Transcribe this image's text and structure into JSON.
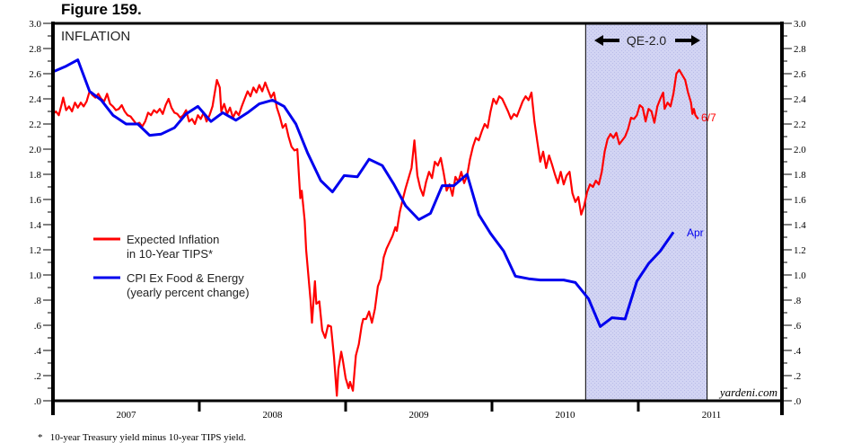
{
  "figure_title": "Figure 159.",
  "footnote": "*   10-year Treasury yield minus 10-year TIPS yield.",
  "chart_data": {
    "type": "line",
    "title": "INFLATION",
    "xlabel": "",
    "ylabel": "",
    "ylim": [
      0,
      3.0
    ],
    "xlim": [
      2007.0,
      2011.99
    ],
    "y_ticks": [
      "3.0",
      "2.8",
      "2.6",
      "2.4",
      "2.2",
      "2.0",
      "1.8",
      "1.6",
      "1.4",
      "1.2",
      "1.0",
      ".8",
      ".6",
      ".4",
      ".2",
      ".0"
    ],
    "x_tick_labels": [
      "2007",
      "2008",
      "2009",
      "2010",
      "2011"
    ],
    "grid": false,
    "legend_position": "left-middle",
    "annotations": {
      "shaded_region": {
        "label": "QE-2.0",
        "start": 2010.64,
        "end": 2011.47,
        "color": "#c8cbf0"
      },
      "red_end_label": "6/7",
      "blue_end_label": "Apr",
      "watermark": "yardeni.com"
    },
    "series": [
      {
        "name": "Expected Inflation in 10-Year TIPS*",
        "legend_lines": [
          "Expected Inflation",
          "in 10-Year TIPS*"
        ],
        "color": "#ff0000",
        "points": [
          [
            2007.0,
            2.28
          ],
          [
            2007.02,
            2.3
          ],
          [
            2007.04,
            2.27
          ],
          [
            2007.06,
            2.36
          ],
          [
            2007.07,
            2.41
          ],
          [
            2007.09,
            2.31
          ],
          [
            2007.11,
            2.34
          ],
          [
            2007.13,
            2.3
          ],
          [
            2007.15,
            2.37
          ],
          [
            2007.17,
            2.33
          ],
          [
            2007.19,
            2.37
          ],
          [
            2007.21,
            2.34
          ],
          [
            2007.23,
            2.38
          ],
          [
            2007.25,
            2.46
          ],
          [
            2007.27,
            2.43
          ],
          [
            2007.29,
            2.41
          ],
          [
            2007.31,
            2.44
          ],
          [
            2007.33,
            2.4
          ],
          [
            2007.35,
            2.38
          ],
          [
            2007.37,
            2.44
          ],
          [
            2007.39,
            2.36
          ],
          [
            2007.41,
            2.34
          ],
          [
            2007.43,
            2.31
          ],
          [
            2007.45,
            2.32
          ],
          [
            2007.47,
            2.35
          ],
          [
            2007.49,
            2.3
          ],
          [
            2007.51,
            2.27
          ],
          [
            2007.53,
            2.26
          ],
          [
            2007.55,
            2.23
          ],
          [
            2007.57,
            2.2
          ],
          [
            2007.59,
            2.21
          ],
          [
            2007.61,
            2.18
          ],
          [
            2007.63,
            2.22
          ],
          [
            2007.65,
            2.29
          ],
          [
            2007.67,
            2.27
          ],
          [
            2007.69,
            2.31
          ],
          [
            2007.71,
            2.29
          ],
          [
            2007.73,
            2.32
          ],
          [
            2007.75,
            2.28
          ],
          [
            2007.77,
            2.35
          ],
          [
            2007.79,
            2.4
          ],
          [
            2007.81,
            2.33
          ],
          [
            2007.83,
            2.29
          ],
          [
            2007.85,
            2.28
          ],
          [
            2007.87,
            2.25
          ],
          [
            2007.89,
            2.27
          ],
          [
            2007.91,
            2.31
          ],
          [
            2007.93,
            2.22
          ],
          [
            2007.95,
            2.24
          ],
          [
            2007.97,
            2.2
          ],
          [
            2007.99,
            2.27
          ],
          [
            2008.01,
            2.24
          ],
          [
            2008.03,
            2.29
          ],
          [
            2008.05,
            2.22
          ],
          [
            2008.07,
            2.27
          ],
          [
            2008.09,
            2.34
          ],
          [
            2008.1,
            2.41
          ],
          [
            2008.12,
            2.55
          ],
          [
            2008.14,
            2.49
          ],
          [
            2008.15,
            2.3
          ],
          [
            2008.17,
            2.36
          ],
          [
            2008.19,
            2.28
          ],
          [
            2008.21,
            2.33
          ],
          [
            2008.23,
            2.25
          ],
          [
            2008.25,
            2.3
          ],
          [
            2008.27,
            2.27
          ],
          [
            2008.29,
            2.34
          ],
          [
            2008.31,
            2.4
          ],
          [
            2008.33,
            2.46
          ],
          [
            2008.35,
            2.42
          ],
          [
            2008.37,
            2.49
          ],
          [
            2008.39,
            2.45
          ],
          [
            2008.41,
            2.51
          ],
          [
            2008.43,
            2.46
          ],
          [
            2008.45,
            2.53
          ],
          [
            2008.47,
            2.47
          ],
          [
            2008.49,
            2.41
          ],
          [
            2008.51,
            2.45
          ],
          [
            2008.53,
            2.33
          ],
          [
            2008.55,
            2.26
          ],
          [
            2008.57,
            2.17
          ],
          [
            2008.59,
            2.2
          ],
          [
            2008.61,
            2.1
          ],
          [
            2008.63,
            2.02
          ],
          [
            2008.65,
            1.99
          ],
          [
            2008.67,
            2.0
          ],
          [
            2008.69,
            1.61
          ],
          [
            2008.7,
            1.67
          ],
          [
            2008.72,
            1.43
          ],
          [
            2008.73,
            1.2
          ],
          [
            2008.75,
            0.93
          ],
          [
            2008.76,
            0.8
          ],
          [
            2008.77,
            0.62
          ],
          [
            2008.79,
            0.95
          ],
          [
            2008.8,
            0.77
          ],
          [
            2008.82,
            0.79
          ],
          [
            2008.84,
            0.56
          ],
          [
            2008.86,
            0.5
          ],
          [
            2008.88,
            0.6
          ],
          [
            2008.9,
            0.59
          ],
          [
            2008.92,
            0.35
          ],
          [
            2008.94,
            0.04
          ],
          [
            2008.95,
            0.25
          ],
          [
            2008.97,
            0.39
          ],
          [
            2008.98,
            0.33
          ],
          [
            2009.0,
            0.18
          ],
          [
            2009.02,
            0.1
          ],
          [
            2009.03,
            0.15
          ],
          [
            2009.05,
            0.08
          ],
          [
            2009.07,
            0.36
          ],
          [
            2009.09,
            0.45
          ],
          [
            2009.11,
            0.6
          ],
          [
            2009.12,
            0.65
          ],
          [
            2009.14,
            0.65
          ],
          [
            2009.16,
            0.71
          ],
          [
            2009.18,
            0.62
          ],
          [
            2009.2,
            0.73
          ],
          [
            2009.22,
            0.91
          ],
          [
            2009.24,
            0.97
          ],
          [
            2009.26,
            1.14
          ],
          [
            2009.28,
            1.21
          ],
          [
            2009.3,
            1.26
          ],
          [
            2009.32,
            1.31
          ],
          [
            2009.34,
            1.38
          ],
          [
            2009.35,
            1.35
          ],
          [
            2009.37,
            1.5
          ],
          [
            2009.39,
            1.6
          ],
          [
            2009.41,
            1.69
          ],
          [
            2009.43,
            1.77
          ],
          [
            2009.45,
            1.85
          ],
          [
            2009.47,
            2.07
          ],
          [
            2009.49,
            1.79
          ],
          [
            2009.51,
            1.69
          ],
          [
            2009.53,
            1.63
          ],
          [
            2009.55,
            1.74
          ],
          [
            2009.57,
            1.82
          ],
          [
            2009.59,
            1.77
          ],
          [
            2009.61,
            1.9
          ],
          [
            2009.63,
            1.87
          ],
          [
            2009.65,
            1.93
          ],
          [
            2009.67,
            1.81
          ],
          [
            2009.69,
            1.67
          ],
          [
            2009.71,
            1.72
          ],
          [
            2009.73,
            1.63
          ],
          [
            2009.75,
            1.78
          ],
          [
            2009.77,
            1.74
          ],
          [
            2009.79,
            1.82
          ],
          [
            2009.81,
            1.73
          ],
          [
            2009.83,
            1.79
          ],
          [
            2009.85,
            1.92
          ],
          [
            2009.87,
            2.02
          ],
          [
            2009.89,
            2.09
          ],
          [
            2009.91,
            2.07
          ],
          [
            2009.93,
            2.14
          ],
          [
            2009.95,
            2.2
          ],
          [
            2009.97,
            2.17
          ],
          [
            2009.99,
            2.3
          ],
          [
            2010.01,
            2.4
          ],
          [
            2010.03,
            2.36
          ],
          [
            2010.05,
            2.42
          ],
          [
            2010.07,
            2.4
          ],
          [
            2010.09,
            2.35
          ],
          [
            2010.11,
            2.3
          ],
          [
            2010.13,
            2.24
          ],
          [
            2010.15,
            2.28
          ],
          [
            2010.17,
            2.26
          ],
          [
            2010.19,
            2.32
          ],
          [
            2010.21,
            2.38
          ],
          [
            2010.23,
            2.42
          ],
          [
            2010.25,
            2.39
          ],
          [
            2010.27,
            2.45
          ],
          [
            2010.29,
            2.22
          ],
          [
            2010.31,
            2.06
          ],
          [
            2010.33,
            1.9
          ],
          [
            2010.35,
            1.98
          ],
          [
            2010.37,
            1.85
          ],
          [
            2010.39,
            1.95
          ],
          [
            2010.41,
            1.88
          ],
          [
            2010.43,
            1.8
          ],
          [
            2010.45,
            1.73
          ],
          [
            2010.47,
            1.82
          ],
          [
            2010.49,
            1.72
          ],
          [
            2010.51,
            1.79
          ],
          [
            2010.53,
            1.82
          ],
          [
            2010.55,
            1.65
          ],
          [
            2010.57,
            1.58
          ],
          [
            2010.59,
            1.62
          ],
          [
            2010.61,
            1.48
          ],
          [
            2010.63,
            1.55
          ],
          [
            2010.65,
            1.66
          ],
          [
            2010.67,
            1.72
          ],
          [
            2010.69,
            1.7
          ],
          [
            2010.71,
            1.75
          ],
          [
            2010.73,
            1.72
          ],
          [
            2010.75,
            1.82
          ],
          [
            2010.77,
            1.98
          ],
          [
            2010.79,
            2.08
          ],
          [
            2010.81,
            2.12
          ],
          [
            2010.83,
            2.09
          ],
          [
            2010.85,
            2.13
          ],
          [
            2010.87,
            2.04
          ],
          [
            2010.89,
            2.07
          ],
          [
            2010.91,
            2.1
          ],
          [
            2010.93,
            2.16
          ],
          [
            2010.95,
            2.25
          ],
          [
            2010.97,
            2.24
          ],
          [
            2010.99,
            2.27
          ],
          [
            2011.01,
            2.35
          ],
          [
            2011.03,
            2.33
          ],
          [
            2011.05,
            2.22
          ],
          [
            2011.07,
            2.32
          ],
          [
            2011.09,
            2.3
          ],
          [
            2011.11,
            2.21
          ],
          [
            2011.13,
            2.34
          ],
          [
            2011.15,
            2.4
          ],
          [
            2011.17,
            2.45
          ],
          [
            2011.18,
            2.32
          ],
          [
            2011.2,
            2.37
          ],
          [
            2011.22,
            2.34
          ],
          [
            2011.24,
            2.44
          ],
          [
            2011.26,
            2.6
          ],
          [
            2011.28,
            2.63
          ],
          [
            2011.3,
            2.59
          ],
          [
            2011.32,
            2.55
          ],
          [
            2011.34,
            2.45
          ],
          [
            2011.36,
            2.37
          ],
          [
            2011.37,
            2.28
          ],
          [
            2011.38,
            2.32
          ],
          [
            2011.39,
            2.27
          ],
          [
            2011.41,
            2.24
          ]
        ]
      },
      {
        "name": "CPI Ex Food & Energy (yearly percent change)",
        "legend_lines": [
          "CPI Ex Food & Energy",
          "(yearly percent change)"
        ],
        "color": "#0000ee",
        "points": [
          [
            2007.01,
            2.62
          ],
          [
            2007.09,
            2.66
          ],
          [
            2007.17,
            2.71
          ],
          [
            2007.25,
            2.46
          ],
          [
            2007.33,
            2.39
          ],
          [
            2007.41,
            2.27
          ],
          [
            2007.5,
            2.2
          ],
          [
            2007.58,
            2.2
          ],
          [
            2007.66,
            2.11
          ],
          [
            2007.74,
            2.12
          ],
          [
            2007.83,
            2.17
          ],
          [
            2007.91,
            2.28
          ],
          [
            2007.99,
            2.34
          ],
          [
            2008.08,
            2.22
          ],
          [
            2008.16,
            2.29
          ],
          [
            2008.25,
            2.23
          ],
          [
            2008.33,
            2.29
          ],
          [
            2008.41,
            2.36
          ],
          [
            2008.5,
            2.39
          ],
          [
            2008.58,
            2.34
          ],
          [
            2008.66,
            2.2
          ],
          [
            2008.74,
            1.97
          ],
          [
            2008.83,
            1.75
          ],
          [
            2008.91,
            1.66
          ],
          [
            2008.99,
            1.79
          ],
          [
            2009.08,
            1.78
          ],
          [
            2009.16,
            1.92
          ],
          [
            2009.25,
            1.87
          ],
          [
            2009.33,
            1.72
          ],
          [
            2009.41,
            1.55
          ],
          [
            2009.5,
            1.44
          ],
          [
            2009.58,
            1.49
          ],
          [
            2009.66,
            1.71
          ],
          [
            2009.74,
            1.71
          ],
          [
            2009.83,
            1.8
          ],
          [
            2009.91,
            1.48
          ],
          [
            2009.99,
            1.33
          ],
          [
            2010.08,
            1.19
          ],
          [
            2010.16,
            0.99
          ],
          [
            2010.25,
            0.97
          ],
          [
            2010.33,
            0.96
          ],
          [
            2010.41,
            0.96
          ],
          [
            2010.49,
            0.96
          ],
          [
            2010.57,
            0.94
          ],
          [
            2010.66,
            0.81
          ],
          [
            2010.74,
            0.59
          ],
          [
            2010.82,
            0.66
          ],
          [
            2010.91,
            0.65
          ],
          [
            2010.99,
            0.95
          ],
          [
            2011.07,
            1.09
          ],
          [
            2011.15,
            1.19
          ],
          [
            2011.24,
            1.34
          ]
        ]
      }
    ]
  }
}
